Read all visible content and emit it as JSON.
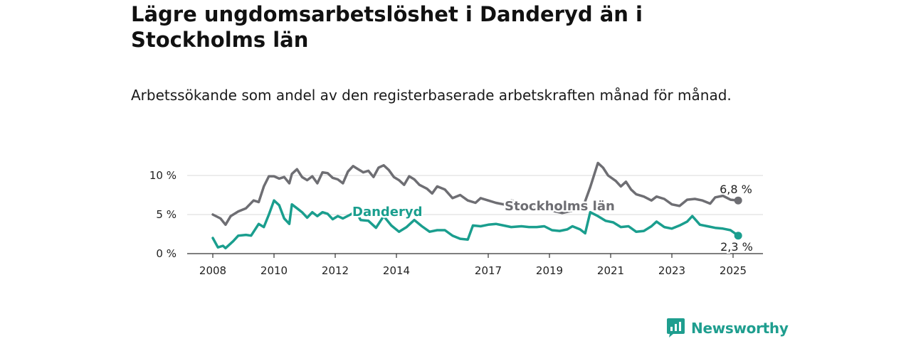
{
  "title": "Lägre ungdomsarbetslöshet i Danderyd än i Stockholms län",
  "subtitle": "Arbetssökande som andel av den registerbaserade arbetskraften månad för månad.",
  "brand": {
    "name": "Newsworthy"
  },
  "colors": {
    "danderyd": "#1a9e8e",
    "stockholm": "#6e6e73",
    "grid": "#d9d9d9",
    "axis": "#333333"
  },
  "chart_data": {
    "type": "line",
    "title": "Lägre ungdomsarbetslöshet i Danderyd än i Stockholms län",
    "subtitle": "Arbetssökande som andel av den registerbaserade arbetskraften månad för månad.",
    "xlabel": "",
    "ylabel": "",
    "xlim": [
      "2008-01",
      "2025-05"
    ],
    "ylim": [
      0,
      12
    ],
    "y_ticks": [
      0,
      5,
      10
    ],
    "y_tick_labels": [
      "0 %",
      "5 %",
      "10 %"
    ],
    "x_ticks": [
      "2008-01",
      "2010-01",
      "2012-01",
      "2014-01",
      "2017-01",
      "2019-01",
      "2021-01",
      "2023-01",
      "2025-01"
    ],
    "x_tick_labels": [
      "2008",
      "2010",
      "2012",
      "2014",
      "2017",
      "2019",
      "2021",
      "2023",
      "2025"
    ],
    "grid": true,
    "legend": "inline labels",
    "series": [
      {
        "name": "Stockholms län",
        "key": "stockholm",
        "end_label": "6,8 %",
        "points": [
          [
            "2008-01",
            5.0
          ],
          [
            "2008-04",
            4.5
          ],
          [
            "2008-06",
            3.7
          ],
          [
            "2008-08",
            4.8
          ],
          [
            "2008-11",
            5.4
          ],
          [
            "2009-02",
            5.8
          ],
          [
            "2009-05",
            6.8
          ],
          [
            "2009-07",
            6.6
          ],
          [
            "2009-09",
            8.6
          ],
          [
            "2009-11",
            9.9
          ],
          [
            "2010-01",
            9.9
          ],
          [
            "2010-03",
            9.6
          ],
          [
            "2010-05",
            9.8
          ],
          [
            "2010-07",
            9.0
          ],
          [
            "2010-08",
            10.2
          ],
          [
            "2010-10",
            10.8
          ],
          [
            "2010-12",
            9.8
          ],
          [
            "2011-02",
            9.4
          ],
          [
            "2011-04",
            9.9
          ],
          [
            "2011-06",
            9.0
          ],
          [
            "2011-08",
            10.4
          ],
          [
            "2011-10",
            10.3
          ],
          [
            "2011-12",
            9.7
          ],
          [
            "2012-02",
            9.5
          ],
          [
            "2012-04",
            9.0
          ],
          [
            "2012-06",
            10.5
          ],
          [
            "2012-08",
            11.2
          ],
          [
            "2012-10",
            10.8
          ],
          [
            "2012-12",
            10.4
          ],
          [
            "2013-02",
            10.6
          ],
          [
            "2013-04",
            9.8
          ],
          [
            "2013-06",
            11.0
          ],
          [
            "2013-08",
            11.3
          ],
          [
            "2013-10",
            10.7
          ],
          [
            "2013-12",
            9.8
          ],
          [
            "2014-02",
            9.4
          ],
          [
            "2014-04",
            8.8
          ],
          [
            "2014-06",
            9.9
          ],
          [
            "2014-08",
            9.5
          ],
          [
            "2014-10",
            8.8
          ],
          [
            "2015-01",
            8.3
          ],
          [
            "2015-03",
            7.7
          ],
          [
            "2015-05",
            8.6
          ],
          [
            "2015-08",
            8.2
          ],
          [
            "2015-11",
            7.1
          ],
          [
            "2016-02",
            7.5
          ],
          [
            "2016-05",
            6.8
          ],
          [
            "2016-08",
            6.5
          ],
          [
            "2016-10",
            7.1
          ],
          [
            "2017-01",
            6.8
          ],
          [
            "2017-04",
            6.5
          ],
          [
            "2017-07",
            6.3
          ],
          [
            "2017-10",
            6.8
          ],
          [
            "2018-02",
            6.4
          ],
          [
            "2018-06",
            6.0
          ],
          [
            "2018-10",
            5.7
          ],
          [
            "2019-02",
            5.5
          ],
          [
            "2019-06",
            5.2
          ],
          [
            "2019-10",
            5.5
          ],
          [
            "2020-02",
            5.8
          ],
          [
            "2020-05",
            8.5
          ],
          [
            "2020-08",
            11.6
          ],
          [
            "2020-10",
            11.0
          ],
          [
            "2020-12",
            10.0
          ],
          [
            "2021-03",
            9.3
          ],
          [
            "2021-05",
            8.6
          ],
          [
            "2021-07",
            9.2
          ],
          [
            "2021-09",
            8.2
          ],
          [
            "2021-11",
            7.6
          ],
          [
            "2022-02",
            7.3
          ],
          [
            "2022-05",
            6.8
          ],
          [
            "2022-07",
            7.3
          ],
          [
            "2022-10",
            7.0
          ],
          [
            "2023-01",
            6.3
          ],
          [
            "2023-04",
            6.1
          ],
          [
            "2023-07",
            6.9
          ],
          [
            "2023-10",
            7.0
          ],
          [
            "2024-01",
            6.8
          ],
          [
            "2024-04",
            6.4
          ],
          [
            "2024-06",
            7.2
          ],
          [
            "2024-09",
            7.4
          ],
          [
            "2024-12",
            6.9
          ],
          [
            "2025-03",
            6.8
          ]
        ]
      },
      {
        "name": "Danderyd",
        "key": "danderyd",
        "end_label": "2,3 %",
        "points": [
          [
            "2008-01",
            2.0
          ],
          [
            "2008-03",
            0.8
          ],
          [
            "2008-05",
            1.0
          ],
          [
            "2008-06",
            0.7
          ],
          [
            "2008-09",
            1.6
          ],
          [
            "2008-11",
            2.3
          ],
          [
            "2009-02",
            2.4
          ],
          [
            "2009-04",
            2.3
          ],
          [
            "2009-07",
            3.8
          ],
          [
            "2009-09",
            3.4
          ],
          [
            "2009-11",
            5.0
          ],
          [
            "2010-01",
            6.8
          ],
          [
            "2010-03",
            6.2
          ],
          [
            "2010-05",
            4.5
          ],
          [
            "2010-07",
            3.8
          ],
          [
            "2010-08",
            6.3
          ],
          [
            "2010-10",
            5.8
          ],
          [
            "2010-12",
            5.3
          ],
          [
            "2011-02",
            4.6
          ],
          [
            "2011-04",
            5.3
          ],
          [
            "2011-06",
            4.8
          ],
          [
            "2011-08",
            5.3
          ],
          [
            "2011-10",
            5.1
          ],
          [
            "2011-12",
            4.4
          ],
          [
            "2012-02",
            4.8
          ],
          [
            "2012-04",
            4.5
          ],
          [
            "2012-07",
            5.0
          ],
          [
            "2012-09",
            5.4
          ],
          [
            "2012-11",
            4.3
          ],
          [
            "2013-02",
            4.2
          ],
          [
            "2013-05",
            3.3
          ],
          [
            "2013-08",
            4.8
          ],
          [
            "2013-11",
            3.6
          ],
          [
            "2014-02",
            2.8
          ],
          [
            "2014-05",
            3.4
          ],
          [
            "2014-08",
            4.3
          ],
          [
            "2014-11",
            3.5
          ],
          [
            "2015-02",
            2.8
          ],
          [
            "2015-05",
            3.0
          ],
          [
            "2015-08",
            3.0
          ],
          [
            "2015-11",
            2.3
          ],
          [
            "2016-02",
            1.9
          ],
          [
            "2016-05",
            1.8
          ],
          [
            "2016-07",
            3.6
          ],
          [
            "2016-10",
            3.5
          ],
          [
            "2017-01",
            3.7
          ],
          [
            "2017-04",
            3.8
          ],
          [
            "2017-07",
            3.6
          ],
          [
            "2017-10",
            3.4
          ],
          [
            "2018-02",
            3.5
          ],
          [
            "2018-05",
            3.4
          ],
          [
            "2018-08",
            3.4
          ],
          [
            "2018-11",
            3.5
          ],
          [
            "2019-02",
            3.0
          ],
          [
            "2019-05",
            2.9
          ],
          [
            "2019-08",
            3.1
          ],
          [
            "2019-10",
            3.5
          ],
          [
            "2020-01",
            3.1
          ],
          [
            "2020-03",
            2.6
          ],
          [
            "2020-05",
            5.3
          ],
          [
            "2020-08",
            4.8
          ],
          [
            "2020-11",
            4.2
          ],
          [
            "2021-02",
            4.0
          ],
          [
            "2021-05",
            3.4
          ],
          [
            "2021-08",
            3.5
          ],
          [
            "2021-11",
            2.8
          ],
          [
            "2022-02",
            2.9
          ],
          [
            "2022-05",
            3.5
          ],
          [
            "2022-07",
            4.1
          ],
          [
            "2022-10",
            3.4
          ],
          [
            "2023-01",
            3.2
          ],
          [
            "2023-04",
            3.6
          ],
          [
            "2023-07",
            4.1
          ],
          [
            "2023-09",
            4.8
          ],
          [
            "2023-12",
            3.7
          ],
          [
            "2024-03",
            3.5
          ],
          [
            "2024-06",
            3.3
          ],
          [
            "2024-09",
            3.2
          ],
          [
            "2024-12",
            3.0
          ],
          [
            "2025-03",
            2.3
          ]
        ]
      }
    ]
  }
}
